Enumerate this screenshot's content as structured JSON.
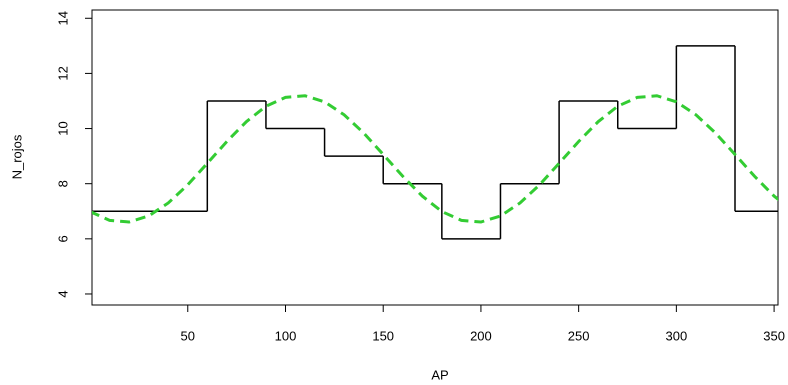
{
  "chart_data": {
    "type": "line",
    "x_label": "AP",
    "y_label": "N_rojos",
    "xlim": [
      1,
      352
    ],
    "ylim": [
      3.6,
      14.3
    ],
    "xticks": [
      50,
      100,
      150,
      200,
      250,
      300,
      350
    ],
    "yticks": [
      4,
      6,
      8,
      10,
      12,
      14
    ],
    "series": [
      {
        "style": "step",
        "color": "#000000",
        "bins": [
          0,
          60,
          90,
          120,
          150,
          180,
          210,
          240,
          270,
          300,
          330,
          360
        ],
        "values": [
          7,
          11,
          10,
          9,
          8,
          6,
          8,
          11,
          10,
          13,
          7
        ]
      },
      {
        "style": "dashed",
        "color": "#33cc33",
        "x": [
          0,
          10,
          20,
          30,
          40,
          50,
          60,
          70,
          80,
          90,
          100,
          110,
          120,
          130,
          140,
          150,
          160,
          170,
          180,
          190,
          200,
          210,
          220,
          230,
          240,
          250,
          260,
          270,
          280,
          290,
          300,
          310,
          320,
          330,
          340,
          350,
          360
        ],
        "values": [
          6.99,
          6.67,
          6.61,
          6.83,
          7.3,
          7.96,
          8.74,
          9.53,
          10.25,
          10.81,
          11.13,
          11.19,
          10.97,
          10.5,
          9.84,
          9.06,
          8.27,
          7.55,
          6.99,
          6.67,
          6.61,
          6.83,
          7.3,
          7.96,
          8.74,
          9.53,
          10.25,
          10.81,
          11.13,
          11.19,
          10.97,
          10.5,
          9.84,
          9.06,
          8.27,
          7.55,
          6.99
        ]
      }
    ]
  }
}
